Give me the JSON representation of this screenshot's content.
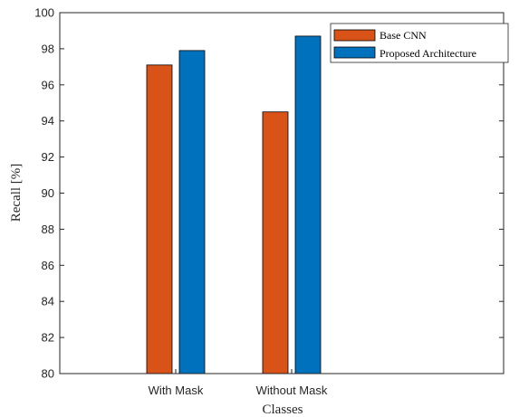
{
  "chart_data": {
    "type": "bar",
    "title": "",
    "xlabel": "Classes",
    "ylabel": "Recall [%]",
    "categories": [
      "With Mask",
      "Without Mask"
    ],
    "series": [
      {
        "name": "Base CNN",
        "values": [
          97.1,
          94.5
        ],
        "color": "#D95319"
      },
      {
        "name": "Proposed Architecture",
        "values": [
          97.9,
          98.7
        ],
        "color": "#0072BD"
      }
    ],
    "ylim": [
      80,
      100
    ],
    "yticks": [
      80,
      82,
      84,
      86,
      88,
      90,
      92,
      94,
      96,
      98,
      100
    ],
    "grid": false,
    "legend_position": "top-right"
  }
}
